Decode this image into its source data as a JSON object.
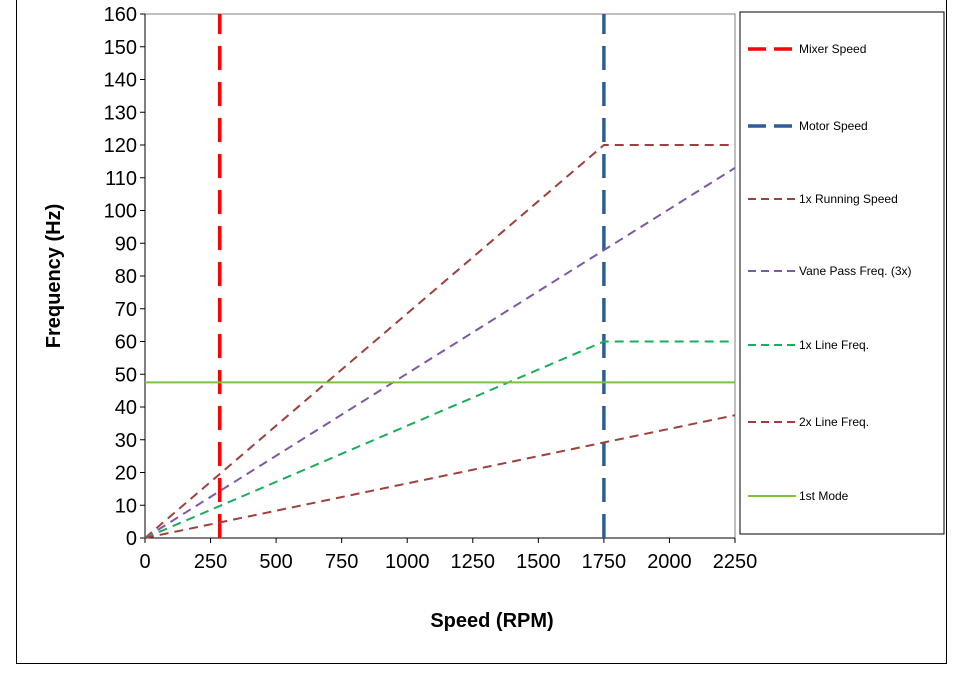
{
  "chart_data": {
    "type": "line",
    "title": "",
    "xlabel": "Speed (RPM)",
    "ylabel": "Frequency (Hz)",
    "xlim": [
      0,
      2250
    ],
    "ylim": [
      0,
      160
    ],
    "x_ticks": [
      0,
      250,
      500,
      750,
      1000,
      1250,
      1500,
      1750,
      2000,
      2250
    ],
    "x_tick_labels": [
      "0",
      "250",
      "500",
      "750",
      "1000",
      "1250",
      "1500",
      "1750",
      "2000",
      "2250"
    ],
    "y_ticks": [
      0,
      10,
      20,
      30,
      40,
      50,
      60,
      70,
      80,
      90,
      100,
      110,
      120,
      130,
      140,
      150,
      160
    ],
    "y_tick_labels": [
      "0",
      "10",
      "20",
      "30",
      "40",
      "50",
      "60",
      "70",
      "80",
      "90",
      "100",
      "110",
      "120",
      "130",
      "140",
      "150",
      "160"
    ],
    "grid": false,
    "legend_position": "right",
    "series": [
      {
        "name": "Mixer Speed",
        "color": "#ff0000",
        "dash": "long",
        "x": [
          285,
          285
        ],
        "y": [
          0,
          160
        ]
      },
      {
        "name": "Motor Speed",
        "color": "#2e5c9a",
        "dash": "long",
        "x": [
          1750,
          1750
        ],
        "y": [
          0,
          160
        ]
      },
      {
        "name": "1x Running Speed",
        "color": "#a0403c",
        "dash": "short",
        "x": [
          0,
          1750,
          2250
        ],
        "y": [
          0,
          120,
          120
        ]
      },
      {
        "name": "Vane Pass Freq. (3x)",
        "color": "#7a5aa8",
        "dash": "short",
        "x": [
          0,
          2250
        ],
        "y": [
          0,
          113
        ]
      },
      {
        "name": "1x Line Freq.",
        "color": "#1aae5a",
        "dash": "short",
        "x": [
          0,
          1750,
          2250
        ],
        "y": [
          0,
          60,
          60
        ]
      },
      {
        "name": "2x Line Freq.",
        "color": "#a0403c",
        "dash": "short",
        "x": [
          0,
          2250
        ],
        "y": [
          0,
          37.5
        ]
      },
      {
        "name": "1st Mode",
        "color": "#7cc33a",
        "dash": "solid",
        "x": [
          0,
          2250
        ],
        "y": [
          47.5,
          47.5
        ]
      }
    ]
  }
}
